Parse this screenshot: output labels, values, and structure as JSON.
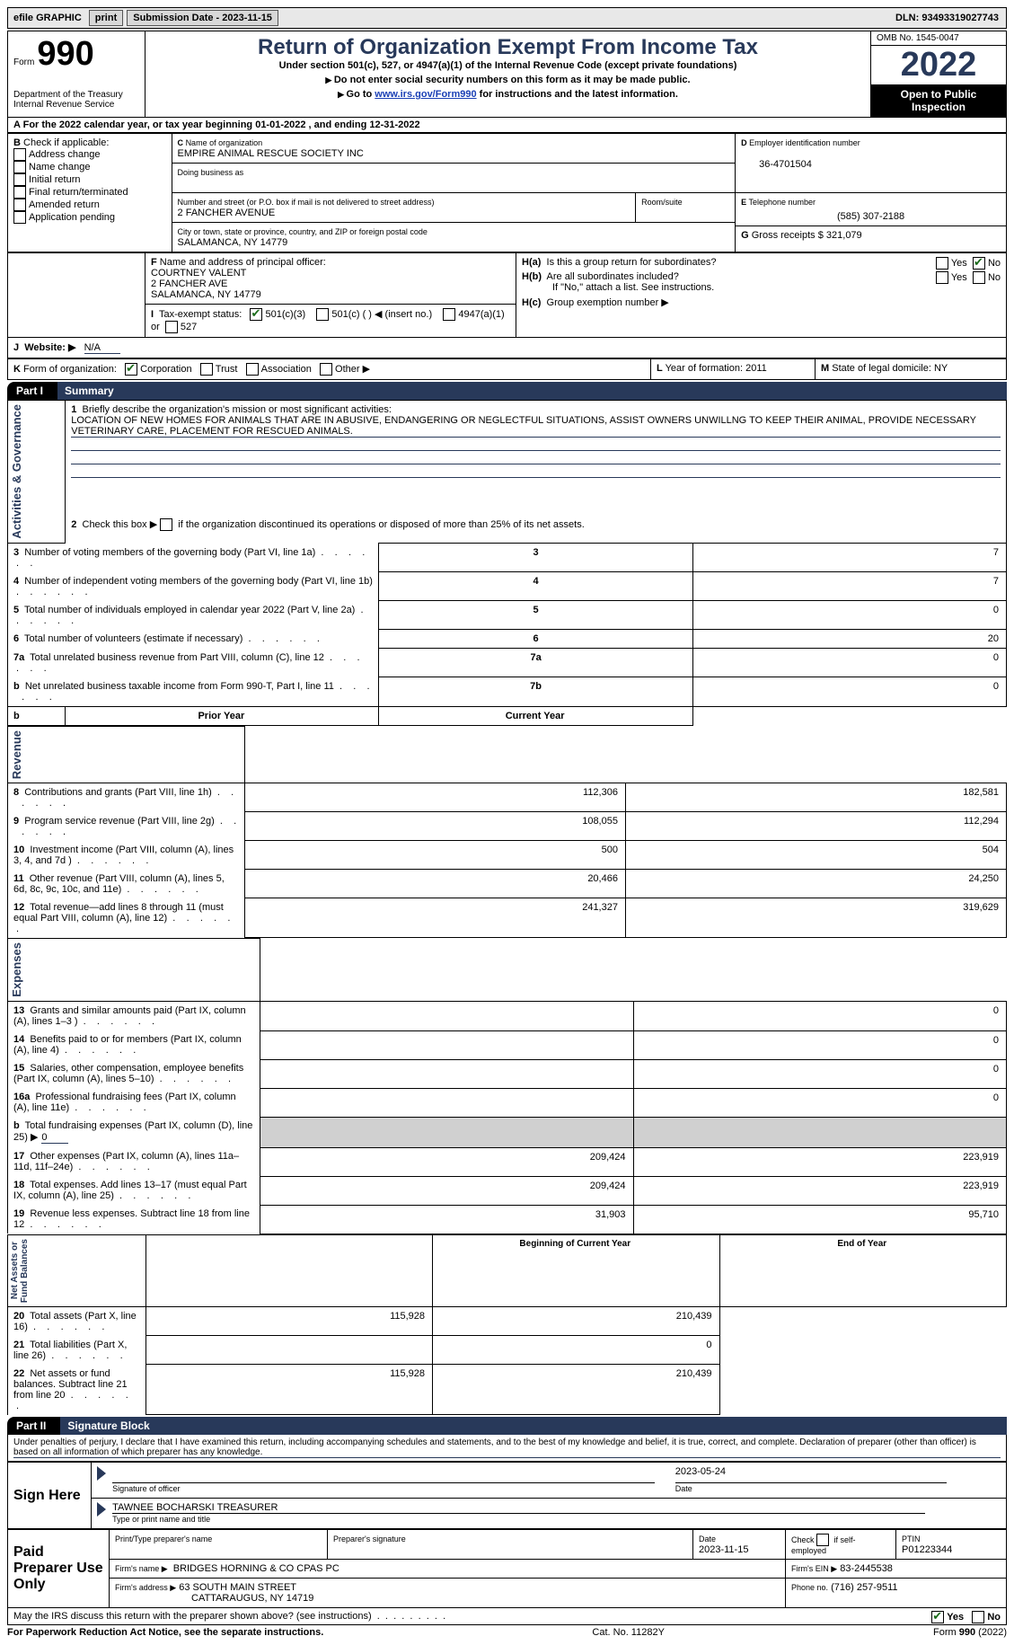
{
  "topbar": {
    "efile": "efile GRAPHIC",
    "print": "print",
    "sub_label": "Submission Date - 2023-11-15",
    "dln_label": "DLN: 93493319027743"
  },
  "header": {
    "form_label": "Form",
    "form_num": "990",
    "dept": "Department of the Treasury\nInternal Revenue Service",
    "title": "Return of Organization Exempt From Income Tax",
    "subtitle": "Under section 501(c), 527, or 4947(a)(1) of the Internal Revenue Code (except private foundations)",
    "note1": "Do not enter social security numbers on this form as it may be made public.",
    "note2_pre": "Go to ",
    "note2_link": "www.irs.gov/Form990",
    "note2_post": " for instructions and the latest information.",
    "omb": "OMB No. 1545-0047",
    "year": "2022",
    "badge": "Open to Public Inspection"
  },
  "A": {
    "line": "For the 2022 calendar year, or tax year beginning 01-01-2022   , and ending 12-31-2022"
  },
  "B": {
    "label": "Check if applicable:",
    "opts": [
      "Address change",
      "Name change",
      "Initial return",
      "Final return/terminated",
      "Amended return",
      "Application pending"
    ]
  },
  "C": {
    "name_lbl": "Name of organization",
    "name": "EMPIRE ANIMAL RESCUE SOCIETY INC",
    "dba_lbl": "Doing business as",
    "street_lbl": "Number and street (or P.O. box if mail is not delivered to street address)",
    "street": "2 FANCHER AVENUE",
    "room_lbl": "Room/suite",
    "city_lbl": "City or town, state or province, country, and ZIP or foreign postal code",
    "city": "SALAMANCA, NY  14779"
  },
  "D": {
    "lbl": "Employer identification number",
    "val": "36-4701504"
  },
  "E": {
    "lbl": "Telephone number",
    "val": "(585) 307-2188"
  },
  "G": {
    "lbl": "Gross receipts $",
    "val": "321,079"
  },
  "F": {
    "lbl": "Name and address of principal officer:",
    "name": "COURTNEY VALENT",
    "addr1": "2 FANCHER AVE",
    "addr2": "SALAMANCA, NY  14779"
  },
  "H": {
    "a": "Is this a group return for subordinates?",
    "b": "Are all subordinates included?",
    "b_note": "If \"No,\" attach a list. See instructions.",
    "c": "Group exemption number ▶",
    "yes": "Yes",
    "no": "No"
  },
  "I": {
    "lbl": "Tax-exempt status:",
    "o1": "501(c)(3)",
    "o2": "501(c) (  ) ◀ (insert no.)",
    "o3": "4947(a)(1) or",
    "o4": "527"
  },
  "J": {
    "lbl": "Website: ▶",
    "val": "N/A"
  },
  "K": {
    "lbl": "Form of organization:",
    "opts": [
      "Corporation",
      "Trust",
      "Association",
      "Other ▶"
    ]
  },
  "L": {
    "lbl": "Year of formation:",
    "val": "2011"
  },
  "M": {
    "lbl": "State of legal domicile:",
    "val": "NY"
  },
  "part1": {
    "tab": "Part I",
    "title": "Summary",
    "mission_lbl": "Briefly describe the organization's mission or most significant activities:",
    "mission": "LOCATION OF NEW HOMES FOR ANIMALS THAT ARE IN ABUSIVE, ENDANGERING OR NEGLECTFUL SITUATIONS, ASSIST OWNERS UNWILLNG TO KEEP THEIR ANIMAL, PROVIDE NECESSARY VETERINARY CARE, PLACEMENT FOR RESCUED ANIMALS.",
    "line2": "Check this box ▶        if the organization discontinued its operations or disposed of more than 25% of its net assets.",
    "rows_gov": [
      {
        "n": "3",
        "t": "Number of voting members of the governing body (Part VI, line 1a)",
        "box": "3",
        "v": "7"
      },
      {
        "n": "4",
        "t": "Number of independent voting members of the governing body (Part VI, line 1b)",
        "box": "4",
        "v": "7"
      },
      {
        "n": "5",
        "t": "Total number of individuals employed in calendar year 2022 (Part V, line 2a)",
        "box": "5",
        "v": "0"
      },
      {
        "n": "6",
        "t": "Total number of volunteers (estimate if necessary)",
        "box": "6",
        "v": "20"
      },
      {
        "n": "7a",
        "t": "Total unrelated business revenue from Part VIII, column (C), line 12",
        "box": "7a",
        "v": "0"
      },
      {
        "n": "b",
        "t": "Net unrelated business taxable income from Form 990-T, Part I, line 11",
        "box": "7b",
        "v": "0"
      }
    ],
    "hdr_b": "b",
    "col_prior": "Prior Year",
    "col_curr": "Current Year",
    "rows_rev": [
      {
        "n": "8",
        "t": "Contributions and grants (Part VIII, line 1h)",
        "p": "112,306",
        "c": "182,581"
      },
      {
        "n": "9",
        "t": "Program service revenue (Part VIII, line 2g)",
        "p": "108,055",
        "c": "112,294"
      },
      {
        "n": "10",
        "t": "Investment income (Part VIII, column (A), lines 3, 4, and 7d )",
        "p": "500",
        "c": "504"
      },
      {
        "n": "11",
        "t": "Other revenue (Part VIII, column (A), lines 5, 6d, 8c, 9c, 10c, and 11e)",
        "p": "20,466",
        "c": "24,250"
      },
      {
        "n": "12",
        "t": "Total revenue—add lines 8 through 11 (must equal Part VIII, column (A), line 12)",
        "p": "241,327",
        "c": "319,629"
      }
    ],
    "rows_exp": [
      {
        "n": "13",
        "t": "Grants and similar amounts paid (Part IX, column (A), lines 1–3 )",
        "p": "",
        "c": "0"
      },
      {
        "n": "14",
        "t": "Benefits paid to or for members (Part IX, column (A), line 4)",
        "p": "",
        "c": "0"
      },
      {
        "n": "15",
        "t": "Salaries, other compensation, employee benefits (Part IX, column (A), lines 5–10)",
        "p": "",
        "c": "0"
      },
      {
        "n": "16a",
        "t": "Professional fundraising fees (Part IX, column (A), line 11e)",
        "p": "",
        "c": "0"
      },
      {
        "n": "b",
        "t": "Total fundraising expenses (Part IX, column (D), line 25) ▶",
        "p": "grey",
        "c": "grey",
        "inline": "0"
      },
      {
        "n": "17",
        "t": "Other expenses (Part IX, column (A), lines 11a–11d, 11f–24e)",
        "p": "209,424",
        "c": "223,919"
      },
      {
        "n": "18",
        "t": "Total expenses. Add lines 13–17 (must equal Part IX, column (A), line 25)",
        "p": "209,424",
        "c": "223,919"
      },
      {
        "n": "19",
        "t": "Revenue less expenses. Subtract line 18 from line 12",
        "p": "31,903",
        "c": "95,710"
      }
    ],
    "col_beg": "Beginning of Current Year",
    "col_end": "End of Year",
    "rows_net": [
      {
        "n": "20",
        "t": "Total assets (Part X, line 16)",
        "p": "115,928",
        "c": "210,439"
      },
      {
        "n": "21",
        "t": "Total liabilities (Part X, line 26)",
        "p": "",
        "c": "0"
      },
      {
        "n": "22",
        "t": "Net assets or fund balances. Subtract line 21 from line 20",
        "p": "115,928",
        "c": "210,439"
      }
    ],
    "vlabels": [
      "Activities & Governance",
      "Revenue",
      "Expenses",
      "Net Assets or\nFund Balances"
    ]
  },
  "part2": {
    "tab": "Part II",
    "title": "Signature Block",
    "decl": "Under penalties of perjury, I declare that I have examined this return, including accompanying schedules and statements, and to the best of my knowledge and belief, it is true, correct, and complete. Declaration of preparer (other than officer) is based on all information of which preparer has any knowledge.",
    "sign_here": "Sign Here",
    "sig_officer": "Signature of officer",
    "sig_date": "2023-05-24",
    "date_lbl": "Date",
    "typed_name": "TAWNEE BOCHARSKI  TREASURER",
    "typed_lbl": "Type or print name and title",
    "paid": "Paid Preparer Use Only",
    "prep_name_lbl": "Print/Type preparer's name",
    "prep_sig_lbl": "Preparer's signature",
    "prep_date_lbl": "Date",
    "prep_date": "2023-11-15",
    "self_emp": "Check         if self-employed",
    "ptin_lbl": "PTIN",
    "ptin": "P01223344",
    "firm_name_lbl": "Firm's name   ▶",
    "firm_name": "BRIDGES HORNING & CO CPAS PC",
    "firm_ein_lbl": "Firm's EIN ▶",
    "firm_ein": "83-2445538",
    "firm_addr_lbl": "Firm's address ▶",
    "firm_addr1": "63 SOUTH MAIN STREET",
    "firm_addr2": "CATTARAUGUS, NY  14719",
    "firm_phone_lbl": "Phone no.",
    "firm_phone": "(716) 257-9511",
    "discuss": "May the IRS discuss this return with the preparer shown above? (see instructions)"
  },
  "footer": {
    "left": "For Paperwork Reduction Act Notice, see the separate instructions.",
    "mid": "Cat. No. 11282Y",
    "right": "Form 990 (2022)"
  }
}
